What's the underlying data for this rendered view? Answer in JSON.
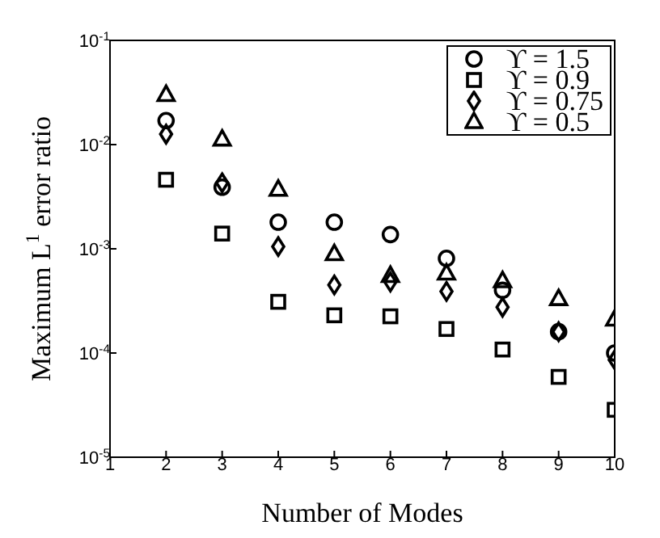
{
  "chart_data": {
    "type": "scatter",
    "xlabel": "Number of Modes",
    "ylabel": "Maximum L$^{1}$ error ratio",
    "x": [
      2,
      3,
      4,
      5,
      6,
      7,
      8,
      9,
      10
    ],
    "series": [
      {
        "name": "ϒ = 1.5",
        "color": "#000000",
        "marker": "circle",
        "values": [
          0.017,
          0.0039,
          0.0018,
          0.0018,
          0.00137,
          0.00081,
          0.0004,
          0.00016,
          0.0001
        ]
      },
      {
        "name": "ϒ = 0.9",
        "color": "#000000",
        "marker": "square",
        "values": [
          0.0046,
          0.0014,
          0.00031,
          0.00023,
          0.000225,
          0.00017,
          0.000108,
          5.9e-05,
          2.85e-05
        ]
      },
      {
        "name": "ϒ = 0.75",
        "color": "#000000",
        "marker": "diamond",
        "values": [
          0.0126,
          0.0043,
          0.00105,
          0.00045,
          0.00048,
          0.00039,
          0.000275,
          0.00016,
          8.6e-05
        ]
      },
      {
        "name": "ϒ = 0.5",
        "color": "#000000",
        "marker": "triangle",
        "values": [
          0.03,
          0.0112,
          0.0037,
          0.00089,
          0.00055,
          0.00058,
          0.00049,
          0.00033,
          0.00021
        ]
      }
    ],
    "xlim": [
      1,
      10
    ],
    "xticks": [
      1,
      2,
      3,
      4,
      5,
      6,
      7,
      8,
      9,
      10
    ],
    "log": "y",
    "ylim": [
      1e-05,
      0.1
    ],
    "yticks": [
      {
        "value": 1e-05,
        "label": "10$^{-5}$"
      },
      {
        "value": 0.0001,
        "label": "10$^{-4}$"
      },
      {
        "value": 0.001,
        "label": "10$^{-3}$"
      },
      {
        "value": 0.01,
        "label": "10$^{-2}$"
      },
      {
        "value": 0.1,
        "label": "10$^{-1}$"
      }
    ],
    "grid": false,
    "legend": "top right"
  }
}
